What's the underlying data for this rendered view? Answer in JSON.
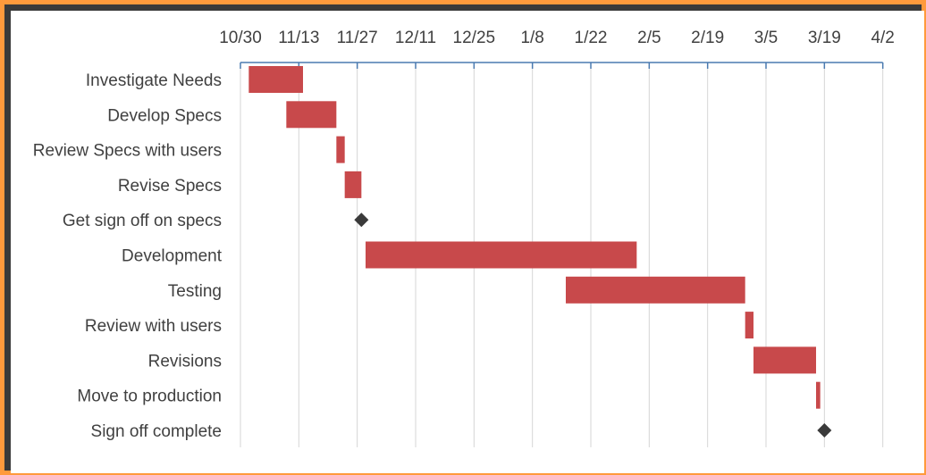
{
  "chart_data": {
    "type": "gantt",
    "title": "",
    "xlabel": "",
    "ylabel": "",
    "x_axis_position": "top",
    "xlim": [
      "2016-10-28",
      "2017-04-02"
    ],
    "x_ticks": [
      "10/30",
      "11/13",
      "11/27",
      "12/11",
      "12/25",
      "1/8",
      "1/22",
      "2/5",
      "2/19",
      "3/5",
      "3/19",
      "4/2"
    ],
    "x_tick_dates": [
      "2016-10-30",
      "2016-11-13",
      "2016-11-27",
      "2016-12-11",
      "2016-12-25",
      "2017-01-08",
      "2017-01-22",
      "2017-02-05",
      "2017-02-19",
      "2017-03-05",
      "2017-03-19",
      "2017-04-02"
    ],
    "grid": "vertical",
    "bar_color": "#c8494b",
    "milestone_color": "#3a3a3a",
    "axis_color": "#4a7ab0",
    "grid_color": "#d6d6d6",
    "tasks": [
      {
        "name": "Investigate Needs",
        "start": "2016-11-01",
        "end": "2016-11-14",
        "type": "task"
      },
      {
        "name": "Develop Specs",
        "start": "2016-11-10",
        "end": "2016-11-22",
        "type": "task"
      },
      {
        "name": "Review Specs with users",
        "start": "2016-11-22",
        "end": "2016-11-24",
        "type": "task"
      },
      {
        "name": "Revise Specs",
        "start": "2016-11-24",
        "end": "2016-11-28",
        "type": "task"
      },
      {
        "name": "Get sign off on specs",
        "start": "2016-11-28",
        "end": "2016-11-28",
        "type": "milestone"
      },
      {
        "name": "Development",
        "start": "2016-11-29",
        "end": "2017-02-02",
        "type": "task"
      },
      {
        "name": "Testing",
        "start": "2017-01-16",
        "end": "2017-02-28",
        "type": "task"
      },
      {
        "name": "Review with users",
        "start": "2017-02-28",
        "end": "2017-03-02",
        "type": "task"
      },
      {
        "name": "Revisions",
        "start": "2017-03-02",
        "end": "2017-03-17",
        "type": "task"
      },
      {
        "name": "Move to production",
        "start": "2017-03-17",
        "end": "2017-03-18",
        "type": "task"
      },
      {
        "name": "Sign off complete",
        "start": "2017-03-19",
        "end": "2017-03-19",
        "type": "milestone"
      }
    ]
  }
}
